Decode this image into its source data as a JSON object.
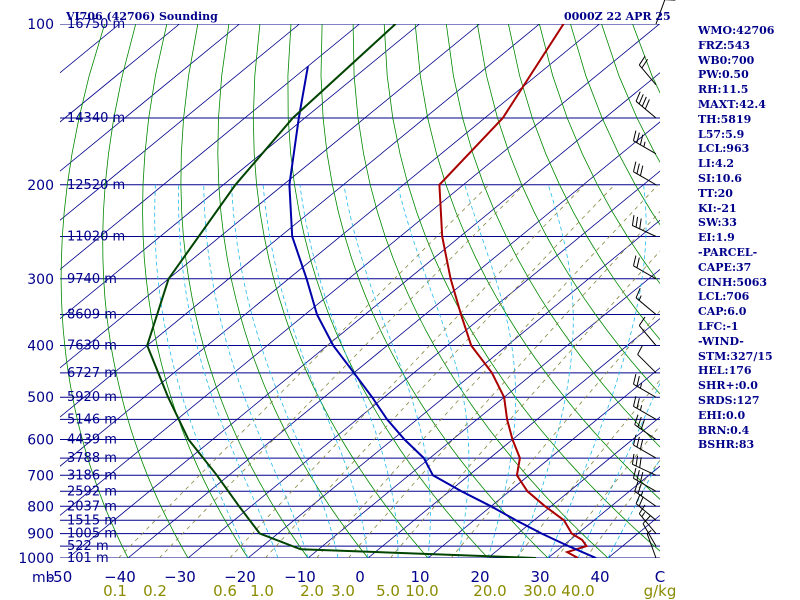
{
  "header": {
    "title": "VI706 (42706) Sounding",
    "valid_time": "0000Z 22 APR 25"
  },
  "indices": [
    "WMO:42706",
    "FRZ:543",
    "WB0:700",
    "PW:0.50",
    "RH:11.5",
    "MAXT:42.4",
    "TH:5819",
    "L57:5.9",
    "LCL:963",
    "LI:4.2",
    "SI:10.6",
    "TT:20",
    "KI:-21",
    "SW:33",
    "EI:1.9",
    "-PARCEL-",
    "CAPE:37",
    "CINH:5063",
    "LCL:706",
    "CAP:6.0",
    "LFC:-1",
    "-WIND-",
    "STM:327/15",
    "HEL:176",
    "SHR+:0.0",
    "SRDS:127",
    "EHI:0.0",
    "BRN:0.4",
    "BSHR:83"
  ],
  "colors": {
    "isobar": "#00008b",
    "isotherm": "#00008b",
    "dry_adiabat": "#008800",
    "moist_adiabat": "#22bbee",
    "mixing_ratio": "#888844",
    "temperature": "#aa0000",
    "dewpoint": "#0000aa",
    "parcel": "#004400",
    "axis_text": "#00008b",
    "mixing_text": "#8b8b00"
  },
  "chart_data": {
    "type": "line",
    "title": "VI706 (42706) Sounding",
    "xlabel": "",
    "ylabel": "mb",
    "x_unit": "°C",
    "y_scale": "log",
    "ylim": [
      1000,
      100
    ],
    "xlim": [
      -50,
      50
    ],
    "pressure_ticks": [
      100,
      200,
      300,
      400,
      500,
      600,
      700,
      800,
      900,
      1000
    ],
    "pressure_tick_labels": [
      "100",
      "200",
      "300",
      "400",
      "500",
      "600",
      "700",
      "800",
      "900",
      "1000"
    ],
    "y_axis_unit_label": "mb",
    "temp_ticks": [
      -50,
      -40,
      -30,
      -20,
      -10,
      0,
      10,
      20,
      30,
      40,
      50
    ],
    "temp_tick_labels": [
      "-50",
      "−40",
      "−30",
      "−20",
      "−10",
      "0",
      "10",
      "20",
      "30",
      "40",
      "C"
    ],
    "mixing_ratio_labels": [
      "0.1",
      "0.2",
      "0.6",
      "1.0",
      "2.0",
      "3.0",
      "5.0",
      "10.0",
      "20.0",
      "30.0",
      "40.0",
      "g/kg"
    ],
    "height_levels": [
      {
        "p": 100,
        "label": "16750 m"
      },
      {
        "p": 150,
        "label": "14340 m"
      },
      {
        "p": 200,
        "label": "12520 m"
      },
      {
        "p": 250,
        "label": "11020 m"
      },
      {
        "p": 300,
        "label": "9740 m"
      },
      {
        "p": 350,
        "label": "8609 m"
      },
      {
        "p": 400,
        "label": "7630 m"
      },
      {
        "p": 450,
        "label": "6727 m"
      },
      {
        "p": 500,
        "label": "5920 m"
      },
      {
        "p": 550,
        "label": "5146 m"
      },
      {
        "p": 600,
        "label": "4439 m"
      },
      {
        "p": 650,
        "label": "3788 m"
      },
      {
        "p": 700,
        "label": "3186 m"
      },
      {
        "p": 750,
        "label": "2592 m"
      },
      {
        "p": 800,
        "label": "2037 m"
      },
      {
        "p": 850,
        "label": "1515 m"
      },
      {
        "p": 900,
        "label": "1005 m"
      },
      {
        "p": 950,
        "label": "522 m"
      },
      {
        "p": 1000,
        "label": "101 m"
      }
    ],
    "series": [
      {
        "role": "temperature",
        "points": [
          {
            "p": 1000,
            "t": 35
          },
          {
            "p": 975,
            "t": 32
          },
          {
            "p": 950,
            "t": 34
          },
          {
            "p": 925,
            "t": 32
          },
          {
            "p": 900,
            "t": 29
          },
          {
            "p": 850,
            "t": 25
          },
          {
            "p": 800,
            "t": 19
          },
          {
            "p": 750,
            "t": 13
          },
          {
            "p": 700,
            "t": 8
          },
          {
            "p": 650,
            "t": 5
          },
          {
            "p": 600,
            "t": 0
          },
          {
            "p": 550,
            "t": -5
          },
          {
            "p": 500,
            "t": -10
          },
          {
            "p": 450,
            "t": -17
          },
          {
            "p": 400,
            "t": -26
          },
          {
            "p": 350,
            "t": -34
          },
          {
            "p": 300,
            "t": -43
          },
          {
            "p": 250,
            "t": -53
          },
          {
            "p": 200,
            "t": -64
          },
          {
            "p": 150,
            "t": -67
          },
          {
            "p": 100,
            "t": -76
          }
        ]
      },
      {
        "role": "dewpoint",
        "points": [
          {
            "p": 1000,
            "t": 38
          },
          {
            "p": 950,
            "t": 31
          },
          {
            "p": 900,
            "t": 24
          },
          {
            "p": 850,
            "t": 17
          },
          {
            "p": 800,
            "t": 10
          },
          {
            "p": 750,
            "t": 2
          },
          {
            "p": 700,
            "t": -6
          },
          {
            "p": 650,
            "t": -11
          },
          {
            "p": 600,
            "t": -18
          },
          {
            "p": 550,
            "t": -25
          },
          {
            "p": 500,
            "t": -32
          },
          {
            "p": 450,
            "t": -40
          },
          {
            "p": 400,
            "t": -49
          },
          {
            "p": 350,
            "t": -58
          },
          {
            "p": 300,
            "t": -67
          },
          {
            "p": 250,
            "t": -78
          },
          {
            "p": 200,
            "t": -89
          },
          {
            "p": 150,
            "t": -101
          },
          {
            "p": 120,
            "t": -110
          }
        ]
      },
      {
        "role": "parcel",
        "points": [
          {
            "p": 1000,
            "t": 28
          },
          {
            "p": 963,
            "t": -13
          },
          {
            "p": 900,
            "t": -23
          },
          {
            "p": 800,
            "t": -32
          },
          {
            "p": 700,
            "t": -42
          },
          {
            "p": 600,
            "t": -54
          },
          {
            "p": 500,
            "t": -66
          },
          {
            "p": 400,
            "t": -80
          },
          {
            "p": 300,
            "t": -90
          },
          {
            "p": 200,
            "t": -98
          },
          {
            "p": 150,
            "t": -102
          },
          {
            "p": 100,
            "t": -104
          }
        ]
      }
    ],
    "wind_barbs": [
      {
        "p": 100,
        "dir": 20,
        "spd": 10
      },
      {
        "p": 130,
        "dir": 320,
        "spd": 20
      },
      {
        "p": 150,
        "dir": 310,
        "spd": 40
      },
      {
        "p": 175,
        "dir": 300,
        "spd": 35
      },
      {
        "p": 200,
        "dir": 300,
        "spd": 30
      },
      {
        "p": 250,
        "dir": 295,
        "spd": 30
      },
      {
        "p": 300,
        "dir": 300,
        "spd": 20
      },
      {
        "p": 350,
        "dir": 310,
        "spd": 15
      },
      {
        "p": 400,
        "dir": 320,
        "spd": 10
      },
      {
        "p": 450,
        "dir": 315,
        "spd": 10
      },
      {
        "p": 500,
        "dir": 300,
        "spd": 25
      },
      {
        "p": 550,
        "dir": 300,
        "spd": 25
      },
      {
        "p": 600,
        "dir": 305,
        "spd": 30
      },
      {
        "p": 650,
        "dir": 300,
        "spd": 30
      },
      {
        "p": 700,
        "dir": 295,
        "spd": 30
      },
      {
        "p": 750,
        "dir": 300,
        "spd": 30
      },
      {
        "p": 800,
        "dir": 305,
        "spd": 25
      },
      {
        "p": 850,
        "dir": 310,
        "spd": 20
      },
      {
        "p": 900,
        "dir": 320,
        "spd": 15
      },
      {
        "p": 950,
        "dir": 330,
        "spd": 10
      },
      {
        "p": 1000,
        "dir": 340,
        "spd": 5
      }
    ]
  }
}
